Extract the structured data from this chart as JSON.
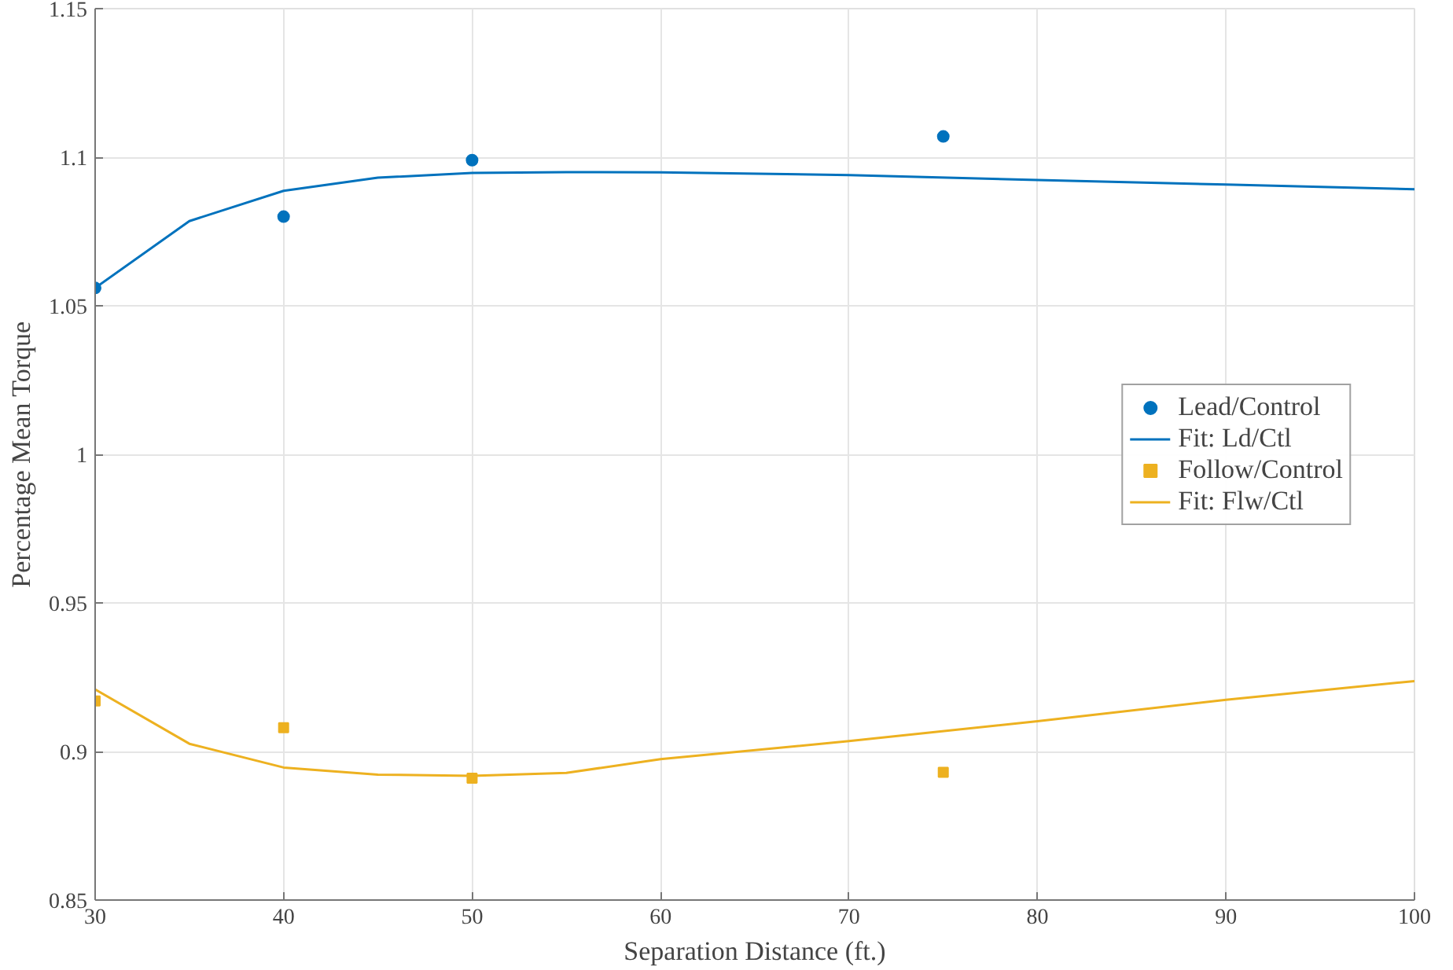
{
  "chart_data": {
    "type": "scatter",
    "xlabel": "Separation Distance (ft.)",
    "ylabel": "Percentage Mean Torque",
    "xlim": [
      30,
      100
    ],
    "xticks": [
      30,
      40,
      50,
      60,
      70,
      80,
      90,
      100
    ],
    "ylim": [
      0.85,
      1.15
    ],
    "yticks": [
      0.85,
      0.9,
      0.95,
      1,
      1.05,
      1.1,
      1.15
    ],
    "grid": true,
    "legend": "right",
    "series": [
      {
        "name": "Lead/Control",
        "marker": "circle",
        "color": "#0072bd",
        "x": [
          30,
          40,
          50,
          75
        ],
        "values": [
          1.056,
          1.08,
          1.099,
          1.107
        ]
      },
      {
        "name": "Fit: Ld/Ctl",
        "type": "line",
        "marker": "none",
        "color": "#0072bd",
        "x": [
          30,
          35,
          40,
          45,
          50,
          55,
          60,
          70,
          80,
          90,
          100
        ],
        "values": [
          1.056,
          1.0785,
          1.0887,
          1.0931,
          1.0947,
          1.095,
          1.0949,
          1.094,
          1.0923,
          1.0908,
          1.0892
        ]
      },
      {
        "name": "Follow/Control",
        "marker": "square",
        "color": "#edb120",
        "x": [
          30,
          40,
          50,
          75
        ],
        "values": [
          0.917,
          0.908,
          0.891,
          0.893
        ]
      },
      {
        "name": "Fit: Flw/Ctl",
        "type": "line",
        "marker": "none",
        "color": "#edb120",
        "x": [
          30,
          35,
          40,
          45,
          50,
          55,
          60,
          70,
          80,
          90,
          100
        ],
        "values": [
          0.9209,
          0.9026,
          0.8946,
          0.8922,
          0.8918,
          0.8928,
          0.8974,
          0.9035,
          0.9102,
          0.9174,
          0.9237
        ]
      }
    ]
  }
}
